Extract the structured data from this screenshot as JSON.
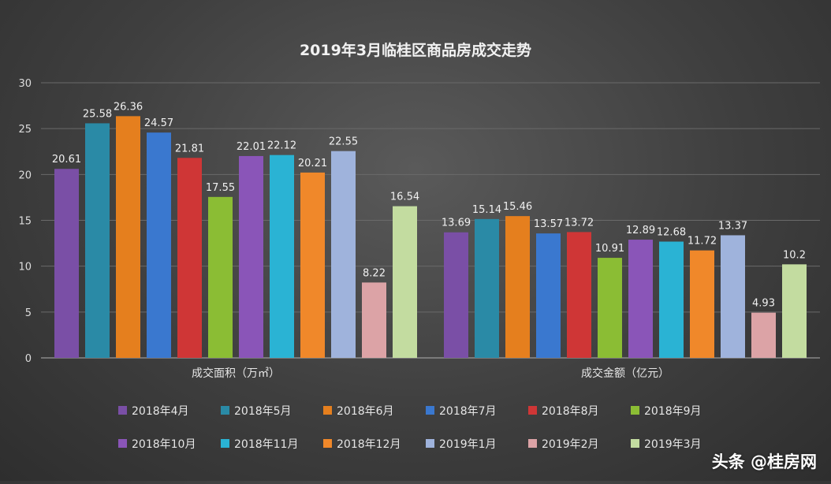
{
  "chart_data": {
    "type": "bar",
    "title": "2019年3月临桂区商品房成交走势",
    "categories": [
      "成交面积（万㎡）",
      "成交金额（亿元）"
    ],
    "ylim": [
      0,
      30
    ],
    "yticks": [
      0,
      5,
      10,
      15,
      20,
      25,
      30
    ],
    "grid": true,
    "legend_position": "bottom",
    "series": [
      {
        "name": "2018年4月",
        "color": "#7a4fa6",
        "values": [
          20.61,
          13.69
        ]
      },
      {
        "name": "2018年5月",
        "color": "#2a8aa6",
        "values": [
          25.58,
          15.14
        ]
      },
      {
        "name": "2018年6月",
        "color": "#e57f1e",
        "values": [
          26.36,
          15.46
        ]
      },
      {
        "name": "2018年7月",
        "color": "#3a78cf",
        "values": [
          24.57,
          13.57
        ]
      },
      {
        "name": "2018年8月",
        "color": "#cf3636",
        "values": [
          21.81,
          13.72
        ]
      },
      {
        "name": "2018年9月",
        "color": "#8bbd34",
        "values": [
          17.55,
          10.91
        ]
      },
      {
        "name": "2018年10月",
        "color": "#8a55b8",
        "values": [
          22.01,
          12.89
        ]
      },
      {
        "name": "2018年11月",
        "color": "#2ab3d4",
        "values": [
          22.12,
          12.68
        ]
      },
      {
        "name": "2018年12月",
        "color": "#f0882a",
        "values": [
          20.21,
          11.72
        ]
      },
      {
        "name": "2019年1月",
        "color": "#9fb3dc",
        "values": [
          22.55,
          13.37
        ]
      },
      {
        "name": "2019年2月",
        "color": "#dca3a6",
        "values": [
          8.22,
          4.93
        ]
      },
      {
        "name": "2019年3月",
        "color": "#c3dca0",
        "values": [
          16.54,
          10.2
        ]
      }
    ]
  },
  "badge_text": "头条 @桂房网"
}
